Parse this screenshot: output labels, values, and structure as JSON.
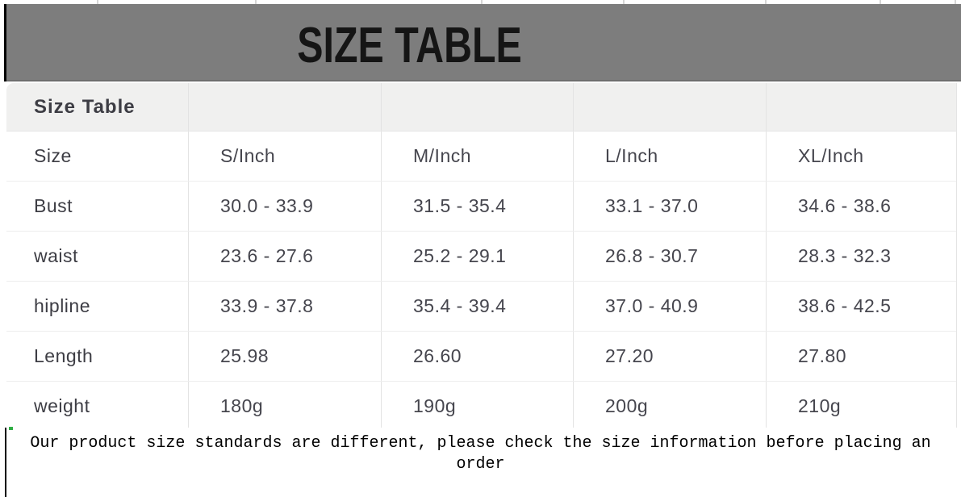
{
  "banner": {
    "title": "SIZE TABLE",
    "background_color": "#7d7d7d",
    "title_color": "#151515"
  },
  "table": {
    "header_label": "Size Table",
    "header_row_bg": "#f0f0ef",
    "grid_line_color": "#e6e6e6",
    "text_color": "#46464e",
    "rows": [
      {
        "label": "Size",
        "values": [
          "S/Inch",
          "M/Inch",
          "L/Inch",
          "XL/Inch"
        ]
      },
      {
        "label": "Bust",
        "values": [
          "30.0 - 33.9",
          "31.5 - 35.4",
          "33.1 - 37.0",
          "34.6 - 38.6"
        ]
      },
      {
        "label": "waist",
        "values": [
          "23.6 - 27.6",
          "25.2 - 29.1",
          "26.8 - 30.7",
          "28.3 - 32.3"
        ]
      },
      {
        "label": "hipline",
        "values": [
          "33.9 - 37.8",
          "35.4 - 39.4",
          "37.0 - 40.9",
          "38.6 - 42.5"
        ]
      },
      {
        "label": "Length",
        "values": [
          "25.98",
          "26.60",
          "27.20",
          "27.80"
        ]
      },
      {
        "label": "weight",
        "values": [
          "180g",
          "190g",
          "200g",
          "210g"
        ]
      }
    ]
  },
  "note": {
    "lines": [
      "Our product size standards are different, please check the size information before placing an",
      "order"
    ]
  }
}
